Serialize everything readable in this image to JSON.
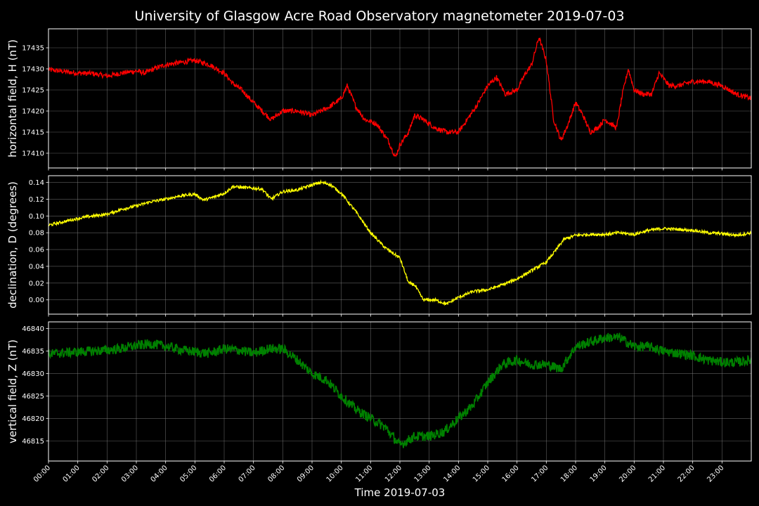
{
  "title": "University of Glasgow Acre Road Observatory magnetometer 2019-07-03",
  "xlabel": "Time 2019-07-03",
  "colors": {
    "background": "#000000",
    "frame": "#ffffff",
    "grid": "#808080",
    "text": "#ffffff"
  },
  "x_ticks": [
    "00:00",
    "01:00",
    "02:00",
    "03:00",
    "04:00",
    "05:00",
    "06:00",
    "07:00",
    "08:00",
    "09:00",
    "10:00",
    "11:00",
    "12:00",
    "13:00",
    "14:00",
    "15:00",
    "16:00",
    "17:00",
    "18:00",
    "19:00",
    "20:00",
    "21:00",
    "22:00",
    "23:00"
  ],
  "chart_data": [
    {
      "type": "line",
      "ylabel": "horizontal field, H (nT)",
      "color": "#ff0000",
      "xlim": [
        0,
        24
      ],
      "ylim": [
        17406.5,
        17439.5
      ],
      "yticks": [
        17410,
        17415,
        17420,
        17425,
        17430,
        17435
      ],
      "grid": true,
      "series": [
        {
          "noise": 0.6,
          "x": [
            0,
            0.5,
            1,
            1.5,
            2,
            2.5,
            3,
            3.3,
            3.6,
            4,
            4.5,
            5,
            5.5,
            6,
            6.3,
            6.6,
            7,
            7.3,
            7.6,
            8,
            8.5,
            9,
            9.3,
            9.6,
            10,
            10.2,
            10.5,
            10.8,
            11.2,
            11.6,
            11.85,
            12,
            12.3,
            12.5,
            12.8,
            13.2,
            13.6,
            14,
            14.3,
            14.6,
            15,
            15.3,
            15.6,
            16,
            16.3,
            16.5,
            16.75,
            17,
            17.25,
            17.5,
            17.75,
            18,
            18.25,
            18.5,
            18.75,
            19,
            19.2,
            19.4,
            19.6,
            19.8,
            20,
            20.3,
            20.6,
            20.85,
            21.2,
            21.5,
            22,
            22.5,
            23,
            23.5,
            24
          ],
          "y": [
            17429.8,
            17429.4,
            17429,
            17428.9,
            17428.3,
            17429,
            17429.5,
            17429,
            17430,
            17431,
            17431.5,
            17432,
            17431,
            17429,
            17426.5,
            17425,
            17422,
            17420,
            17418,
            17420,
            17420,
            17419,
            17420,
            17421,
            17423,
            17426,
            17421,
            17418,
            17417,
            17413,
            17409,
            17412,
            17415,
            17419,
            17418,
            17416,
            17415,
            17415,
            17418,
            17421,
            17426,
            17428,
            17424,
            17425,
            17429,
            17431,
            17437.5,
            17432,
            17418,
            17413,
            17417,
            17422,
            17419,
            17415,
            17416,
            17418,
            17417,
            17416,
            17424,
            17430,
            17425,
            17424,
            17424,
            17429,
            17426,
            17426,
            17427,
            17427,
            17426,
            17424,
            17423
          ]
        }
      ]
    },
    {
      "type": "line",
      "ylabel": "declination, D (degrees)",
      "color": "#ffff00",
      "xlim": [
        0,
        24
      ],
      "ylim": [
        -0.017,
        0.148
      ],
      "yticks": [
        0.0,
        0.02,
        0.04,
        0.06,
        0.08,
        0.1,
        0.12,
        0.14
      ],
      "ytick_labels": [
        "0.00",
        "0.02",
        "0.04",
        "0.06",
        "0.08",
        "0.10",
        "0.12",
        "0.14"
      ],
      "grid": true,
      "series": [
        {
          "noise": 0.0018,
          "x": [
            0,
            0.5,
            1,
            1.5,
            2,
            2.5,
            3,
            3.5,
            4,
            4.5,
            5,
            5.3,
            5.6,
            6,
            6.3,
            6.6,
            7,
            7.3,
            7.6,
            8,
            8.5,
            9,
            9.3,
            9.6,
            10,
            10.5,
            11,
            11.5,
            12,
            12.3,
            12.5,
            12.8,
            13.2,
            13.6,
            14,
            14.5,
            15,
            15.5,
            16,
            16.5,
            17,
            17.3,
            17.6,
            18,
            18.5,
            19,
            19.5,
            20,
            20.5,
            21,
            21.5,
            22,
            22.5,
            23,
            23.5,
            24
          ],
          "y": [
            0.089,
            0.093,
            0.097,
            0.1,
            0.102,
            0.108,
            0.112,
            0.117,
            0.12,
            0.124,
            0.126,
            0.119,
            0.122,
            0.127,
            0.135,
            0.134,
            0.133,
            0.132,
            0.12,
            0.129,
            0.131,
            0.137,
            0.14,
            0.138,
            0.127,
            0.105,
            0.08,
            0.062,
            0.05,
            0.02,
            0.018,
            0.0,
            0.0,
            -0.005,
            0.003,
            0.01,
            0.012,
            0.018,
            0.025,
            0.035,
            0.045,
            0.058,
            0.072,
            0.077,
            0.078,
            0.078,
            0.08,
            0.078,
            0.083,
            0.085,
            0.084,
            0.083,
            0.08,
            0.079,
            0.077,
            0.08
          ]
        }
      ]
    },
    {
      "type": "line",
      "ylabel": "vertical field, Z (nT)",
      "color": "#008000",
      "xlim": [
        0,
        24
      ],
      "ylim": [
        46810.5,
        46841.5
      ],
      "yticks": [
        46815,
        46820,
        46825,
        46830,
        46835,
        46840
      ],
      "grid": true,
      "series": [
        {
          "noise": 1.1,
          "x": [
            0,
            0.5,
            1,
            1.5,
            2,
            2.5,
            3,
            3.5,
            4,
            4.5,
            5,
            5.5,
            6,
            6.5,
            7,
            7.5,
            8,
            8.5,
            9,
            9.5,
            10,
            10.5,
            11,
            11.5,
            12,
            12.5,
            13,
            13.5,
            14,
            14.5,
            15,
            15.5,
            16,
            16.5,
            17,
            17.5,
            18,
            18.5,
            19,
            19.5,
            20,
            20.5,
            21,
            21.5,
            22,
            22.5,
            23,
            23.5,
            24
          ],
          "y": [
            46834.3,
            46834.6,
            46834.8,
            46835,
            46835.2,
            46835.6,
            46836.2,
            46836.6,
            46836.1,
            46835.3,
            46834.8,
            46834.5,
            46835.5,
            46835.2,
            46834.5,
            46835.5,
            46835.5,
            46833,
            46830,
            46828.5,
            46825,
            46822,
            46820,
            46818,
            46814,
            46816,
            46816,
            46817,
            46820,
            46823,
            46828,
            46832,
            46833,
            46832,
            46832,
            46831,
            46836,
            46837,
            46838,
            46838,
            46836,
            46836,
            46835,
            46834.5,
            46834,
            46833,
            46832.5,
            46832.5,
            46833
          ]
        }
      ]
    }
  ]
}
